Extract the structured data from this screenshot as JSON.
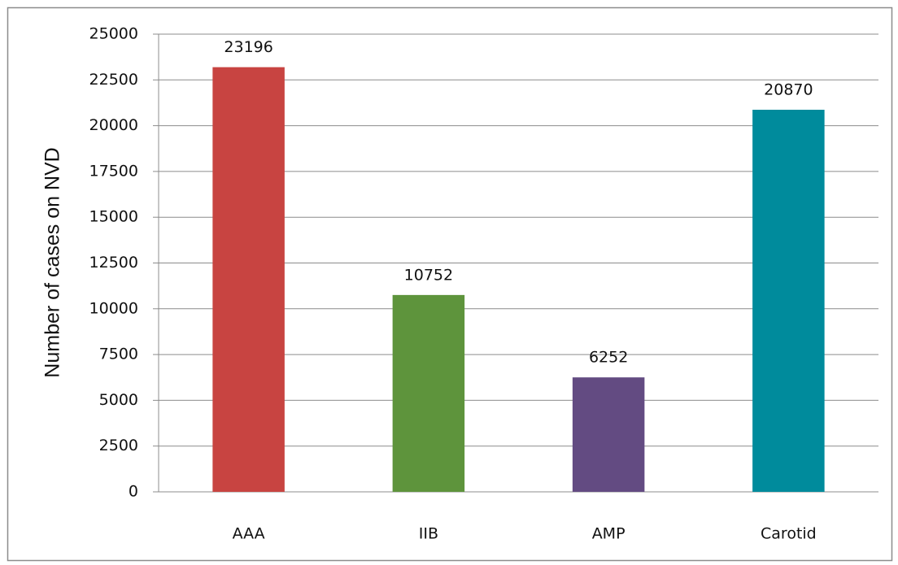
{
  "chart_data": {
    "type": "bar",
    "y_axis_label": "Number of cases on NVD",
    "categories": [
      "AAA",
      "IIB",
      "AMP",
      "Carotid"
    ],
    "values": [
      23196,
      10752,
      6252,
      20870
    ],
    "colors": [
      "#c84441",
      "#5e943c",
      "#634b82",
      "#008b9c"
    ],
    "ylim": [
      0,
      25000
    ],
    "yticks": [
      0,
      2500,
      5000,
      7500,
      10000,
      12500,
      15000,
      17500,
      20000,
      22500,
      25000
    ],
    "grid": true
  }
}
